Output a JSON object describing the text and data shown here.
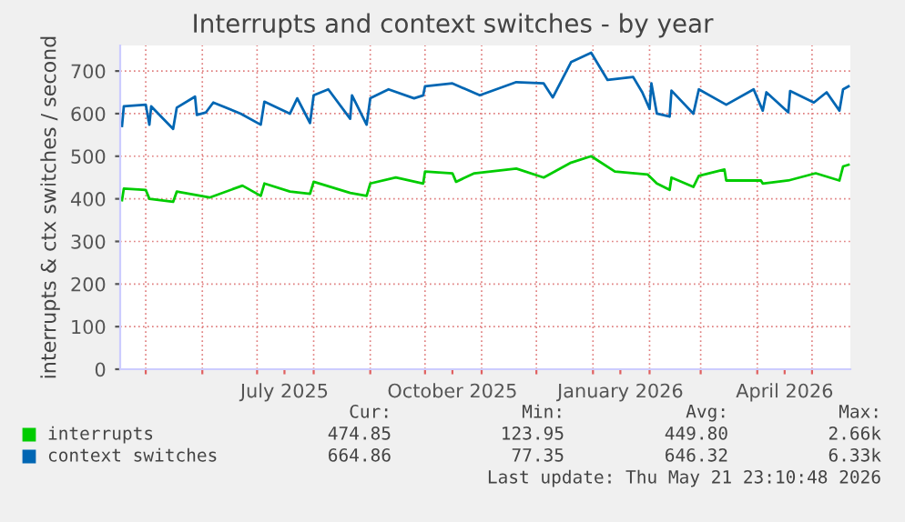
{
  "chart_data": {
    "type": "line",
    "title": "Interrupts and context switches - by year",
    "ylabel": "interrupts & ctx switches / second",
    "xlim": [
      "2025-04-17",
      "2026-05-22"
    ],
    "ylim": [
      0,
      760
    ],
    "yticks": [
      0,
      100,
      200,
      300,
      400,
      500,
      600,
      700
    ],
    "xticks": [
      {
        "value": "2025-05-01",
        "label": null
      },
      {
        "value": "2025-06-01",
        "label": null
      },
      {
        "value": "2025-07-01",
        "label": null
      },
      {
        "value": "2025-07-16",
        "label": "July 2025"
      },
      {
        "value": "2025-08-01",
        "label": null
      },
      {
        "value": "2025-09-01",
        "label": null
      },
      {
        "value": "2025-10-01",
        "label": null
      },
      {
        "value": "2025-10-16",
        "label": "October 2025"
      },
      {
        "value": "2025-11-01",
        "label": null
      },
      {
        "value": "2025-12-01",
        "label": null
      },
      {
        "value": "2026-01-01",
        "label": null
      },
      {
        "value": "2026-01-16",
        "label": "January 2026"
      },
      {
        "value": "2026-02-01",
        "label": null
      },
      {
        "value": "2026-03-01",
        "label": null
      },
      {
        "value": "2026-04-01",
        "label": null
      },
      {
        "value": "2026-04-16",
        "label": "April 2026"
      },
      {
        "value": "2026-05-01",
        "label": null
      }
    ],
    "grid": true,
    "legend": "bottom left",
    "series": [
      {
        "name": "interrupts",
        "color": "#00cc00",
        "x": [
          "2025-04-18",
          "2025-04-19",
          "2025-05-01",
          "2025-05-03",
          "2025-05-16",
          "2025-05-18",
          "2025-06-05",
          "2025-06-23",
          "2025-07-03",
          "2025-07-05",
          "2025-07-19",
          "2025-07-30",
          "2025-08-01",
          "2025-08-21",
          "2025-08-30",
          "2025-09-01",
          "2025-09-15",
          "2025-09-30",
          "2025-10-01",
          "2025-10-16",
          "2025-10-18",
          "2025-10-28",
          "2025-11-20",
          "2025-12-05",
          "2025-12-20",
          "2025-12-31",
          "2026-01-13",
          "2026-01-31",
          "2026-02-05",
          "2026-02-12",
          "2026-02-13",
          "2026-02-25",
          "2026-02-28",
          "2026-03-14",
          "2026-03-15",
          "2026-04-03",
          "2026-04-04",
          "2026-04-18",
          "2026-05-03",
          "2026-05-16",
          "2026-05-18",
          "2026-05-21"
        ],
        "values": [
          397,
          424,
          421,
          400,
          393,
          417,
          403,
          431,
          407,
          436,
          417,
          412,
          440,
          414,
          407,
          436,
          450,
          436,
          464,
          460,
          440,
          460,
          471,
          450,
          485,
          500,
          464,
          457,
          436,
          421,
          450,
          428,
          454,
          469,
          443,
          443,
          436,
          443,
          460,
          443,
          476,
          480
        ]
      },
      {
        "name": "context switches",
        "color": "#0066b3",
        "x": [
          "2025-04-18",
          "2025-04-19",
          "2025-05-01",
          "2025-05-03",
          "2025-05-04",
          "2025-05-16",
          "2025-05-18",
          "2025-05-28",
          "2025-05-29",
          "2025-06-03",
          "2025-06-07",
          "2025-06-22",
          "2025-07-03",
          "2025-07-05",
          "2025-07-19",
          "2025-07-23",
          "2025-07-30",
          "2025-08-01",
          "2025-08-09",
          "2025-08-21",
          "2025-08-22",
          "2025-08-30",
          "2025-09-01",
          "2025-09-11",
          "2025-09-25",
          "2025-09-30",
          "2025-10-01",
          "2025-10-16",
          "2025-10-31",
          "2025-11-20",
          "2025-12-05",
          "2025-12-10",
          "2025-12-20",
          "2025-12-31",
          "2026-01-09",
          "2026-01-23",
          "2026-01-28",
          "2026-02-01",
          "2026-02-02",
          "2026-02-05",
          "2026-02-12",
          "2026-02-13",
          "2026-02-25",
          "2026-02-28",
          "2026-03-15",
          "2026-03-30",
          "2026-04-04",
          "2026-04-06",
          "2026-04-18",
          "2026-04-19",
          "2026-05-02",
          "2026-05-09",
          "2026-05-16",
          "2026-05-18",
          "2026-05-21"
        ],
        "values": [
          571,
          617,
          621,
          574,
          617,
          564,
          614,
          640,
          597,
          603,
          626,
          600,
          574,
          628,
          600,
          636,
          578,
          643,
          657,
          588,
          643,
          574,
          636,
          657,
          636,
          643,
          664,
          671,
          643,
          674,
          671,
          638,
          721,
          743,
          679,
          686,
          650,
          611,
          671,
          600,
          593,
          654,
          600,
          657,
          621,
          657,
          607,
          650,
          603,
          653,
          626,
          650,
          607,
          657,
          664
        ]
      }
    ],
    "annotations": [
      "Cur:",
      "Min:",
      "Avg:",
      "Max:",
      "474.85",
      "123.95",
      "449.80",
      "2.66k",
      "664.86",
      "77.35",
      "646.32",
      "6.33k",
      "Last update: Thu May 21 23:10:48 2026"
    ]
  }
}
